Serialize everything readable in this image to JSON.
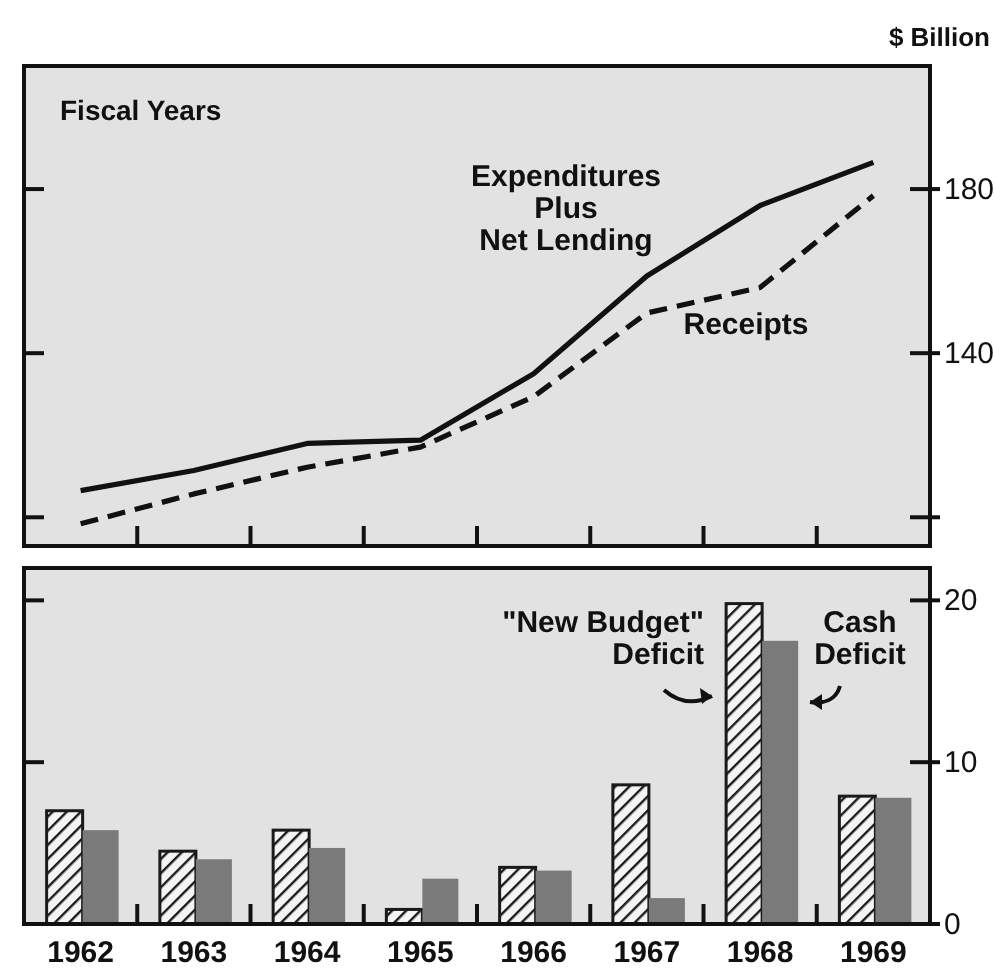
{
  "chart_data": [
    {
      "type": "line",
      "ylabel": "$ Billion",
      "annotations": [
        "Fiscal Years"
      ],
      "categories": [
        "1962",
        "1963",
        "1964",
        "1965",
        "1966",
        "1967",
        "1968",
        "1969"
      ],
      "ylim": [
        93,
        210
      ],
      "yticks": [
        {
          "value": 100,
          "label": null
        },
        140,
        180
      ],
      "tick_labels": "y",
      "grid": false,
      "legend": false,
      "series": [
        {
          "name": "Expenditures\nPlus\nNet Lending",
          "color": "#111111",
          "line_style": "solid",
          "values": [
            106.5,
            111.4,
            118,
            118.8,
            135,
            158.8,
            176,
            186.5
          ]
        },
        {
          "name": "Receipts",
          "color": "#111111",
          "line_style": "dashed",
          "values": [
            98.4,
            105.7,
            112.2,
            117.1,
            129.4,
            149.8,
            156,
            178.4
          ]
        }
      ]
    },
    {
      "type": "bar",
      "categories": [
        "1962",
        "1963",
        "1964",
        "1965",
        "1966",
        "1967",
        "1968",
        "1969"
      ],
      "ylim": [
        0,
        22
      ],
      "yticks": [
        0,
        10,
        20
      ],
      "grid": false,
      "legend": false,
      "series": [
        {
          "name": "\"New Budget\"\nDeficit",
          "color": "#1a1a1a",
          "values": [
            7,
            4.5,
            5.8,
            0.9,
            3.5,
            8.6,
            19.8,
            7.9
          ]
        },
        {
          "name": "Cash\nDeficit",
          "color": "#7a7a7a",
          "values": [
            5.8,
            4,
            4.7,
            2.8,
            3.3,
            1.6,
            17.5,
            7.8
          ]
        }
      ]
    }
  ]
}
